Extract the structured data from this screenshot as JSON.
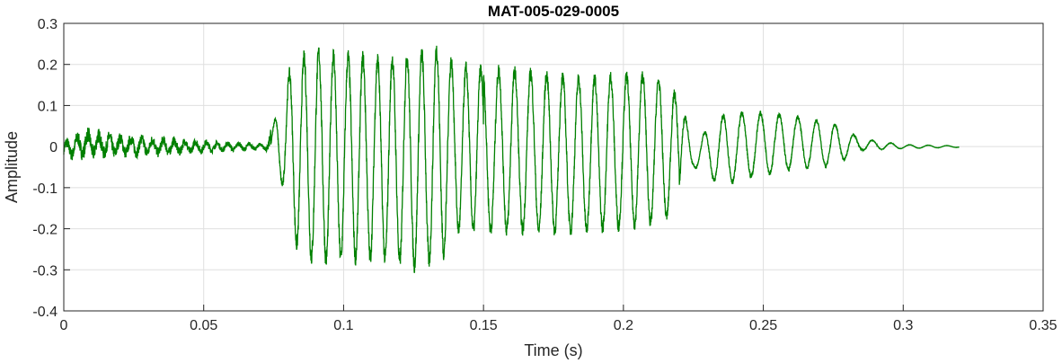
{
  "chart_data": {
    "type": "line",
    "title": "MAT-005-029-0005",
    "xlabel": "Time (s)",
    "ylabel": "Amplitude",
    "xlim": [
      0,
      0.35
    ],
    "ylim": [
      -0.4,
      0.3
    ],
    "grid": true,
    "xticks": [
      0,
      0.05,
      0.1,
      0.15,
      0.2,
      0.25,
      0.3,
      0.35
    ],
    "xtick_labels": [
      "0",
      "0.05",
      "0.1",
      "0.15",
      "0.2",
      "0.25",
      "0.3",
      "0.35"
    ],
    "yticks": [
      -0.4,
      -0.3,
      -0.2,
      -0.1,
      0,
      0.1,
      0.2,
      0.3
    ],
    "ytick_labels": [
      "-0.4",
      "-0.3",
      "-0.2",
      "-0.1",
      "0",
      "0.1",
      "0.2",
      "0.3"
    ],
    "series": [
      {
        "color": "#008000",
        "x_start": 0,
        "x_end": 0.32,
        "envelope": [
          {
            "t": 0.0,
            "top": 0.02,
            "bottom": -0.035
          },
          {
            "t": 0.008,
            "top": 0.05,
            "bottom": -0.035
          },
          {
            "t": 0.02,
            "top": 0.035,
            "bottom": -0.03
          },
          {
            "t": 0.04,
            "top": 0.025,
            "bottom": -0.025
          },
          {
            "t": 0.055,
            "top": 0.015,
            "bottom": -0.015
          },
          {
            "t": 0.072,
            "top": 0.01,
            "bottom": -0.01
          },
          {
            "t": 0.075,
            "top": 0.06,
            "bottom": -0.05
          },
          {
            "t": 0.078,
            "top": 0.14,
            "bottom": -0.1
          },
          {
            "t": 0.082,
            "top": 0.22,
            "bottom": -0.25
          },
          {
            "t": 0.09,
            "top": 0.25,
            "bottom": -0.3
          },
          {
            "t": 0.1,
            "top": 0.24,
            "bottom": -0.29
          },
          {
            "t": 0.115,
            "top": 0.23,
            "bottom": -0.29
          },
          {
            "t": 0.125,
            "top": 0.24,
            "bottom": -0.31
          },
          {
            "t": 0.135,
            "top": 0.26,
            "bottom": -0.29
          },
          {
            "t": 0.14,
            "top": 0.21,
            "bottom": -0.22
          },
          {
            "t": 0.16,
            "top": 0.2,
            "bottom": -0.22
          },
          {
            "t": 0.185,
            "top": 0.18,
            "bottom": -0.22
          },
          {
            "t": 0.21,
            "top": 0.19,
            "bottom": -0.2
          },
          {
            "t": 0.22,
            "top": 0.13,
            "bottom": -0.17
          },
          {
            "t": 0.225,
            "top": 0.01,
            "bottom": -0.05
          },
          {
            "t": 0.235,
            "top": 0.08,
            "bottom": -0.1
          },
          {
            "t": 0.245,
            "top": 0.09,
            "bottom": -0.08
          },
          {
            "t": 0.26,
            "top": 0.08,
            "bottom": -0.06
          },
          {
            "t": 0.275,
            "top": 0.06,
            "bottom": -0.05
          },
          {
            "t": 0.285,
            "top": 0.02,
            "bottom": -0.01
          },
          {
            "t": 0.3,
            "top": 0.005,
            "bottom": -0.005
          },
          {
            "t": 0.32,
            "top": 0.002,
            "bottom": -0.002
          }
        ]
      }
    ]
  }
}
